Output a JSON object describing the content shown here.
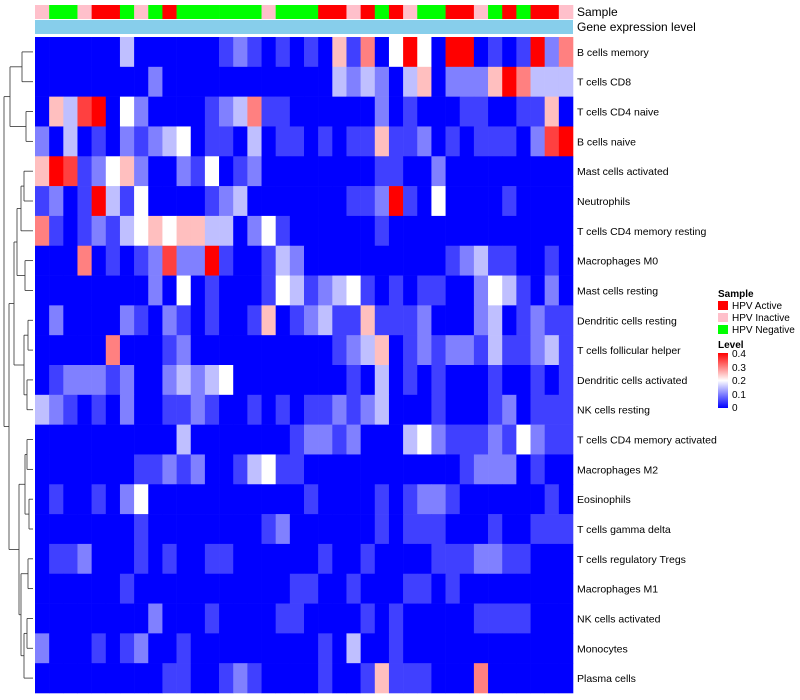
{
  "chart_data": {
    "type": "heatmap",
    "annotation_tracks": [
      "Sample",
      "Gene expression level"
    ],
    "rows": [
      "B cells memory",
      "T cells CD8",
      "T cells CD4 naive",
      "B cells naive",
      "Mast cells activated",
      "Neutrophils",
      "T cells CD4 memory resting",
      "Macrophages M0",
      "Mast cells resting",
      "Dendritic cells resting",
      "T cells follicular helper",
      "Dendritic cells activated",
      "NK cells resting",
      "T cells CD4 memory activated",
      "Macrophages M2",
      "Eosinophils",
      "T cells gamma delta",
      "T cells regulatory  Tregs",
      "Macrophages M1",
      "NK cells activated",
      "Monocytes",
      "Plasma cells"
    ],
    "sample_groups": [
      "I",
      "N",
      "N",
      "I",
      "A",
      "A",
      "N",
      "I",
      "N",
      "A",
      "N",
      "N",
      "N",
      "N",
      "N",
      "N",
      "I",
      "N",
      "N",
      "N",
      "A",
      "A",
      "I",
      "A",
      "N",
      "A",
      "I",
      "N",
      "N",
      "A",
      "A",
      "I",
      "N",
      "A",
      "N",
      "A",
      "A",
      "I"
    ],
    "sample_colors": {
      "A": "#ff0000",
      "I": "#ffc0cb",
      "N": "#00ff00"
    },
    "expression_track_color": "#87ceeb",
    "color_scale": {
      "min": 0,
      "mid": 0.2,
      "max": 0.4,
      "low_color": "#0000ff",
      "mid_color": "#ffffff",
      "high_color": "#ff0000"
    },
    "values": [
      [
        0,
        0,
        0,
        0,
        0,
        0,
        0.15,
        0,
        0,
        0,
        0,
        0,
        0,
        0.05,
        0.1,
        0.05,
        0,
        0.05,
        0,
        0.05,
        0,
        0.25,
        0.05,
        0.3,
        0,
        0.2,
        0.4,
        0.2,
        0,
        0.4,
        0.4,
        0,
        0.05,
        0,
        0.05,
        0.4,
        0.1,
        0.3
      ],
      [
        0,
        0,
        0,
        0,
        0,
        0,
        0,
        0,
        0.1,
        0,
        0,
        0,
        0,
        0,
        0,
        0,
        0,
        0,
        0,
        0,
        0,
        0.15,
        0.1,
        0.15,
        0.1,
        0,
        0.15,
        0.25,
        0,
        0.1,
        0.1,
        0.1,
        0.25,
        0.4,
        0.3,
        0.15,
        0.15,
        0.15
      ],
      [
        0,
        0.25,
        0.15,
        0.35,
        0.4,
        0,
        0.2,
        0.1,
        0,
        0,
        0,
        0,
        0.05,
        0.1,
        0.15,
        0.3,
        0.05,
        0.05,
        0,
        0,
        0,
        0,
        0,
        0,
        0.1,
        0,
        0.05,
        0,
        0,
        0,
        0.05,
        0.05,
        0,
        0,
        0.05,
        0.05,
        0.25,
        0
      ],
      [
        0.1,
        0,
        0.15,
        0,
        0.05,
        0,
        0.1,
        0.05,
        0.1,
        0.15,
        0.2,
        0,
        0.05,
        0.05,
        0,
        0.15,
        0,
        0.05,
        0.05,
        0,
        0.05,
        0,
        0.05,
        0.05,
        0.25,
        0.05,
        0.05,
        0.1,
        0,
        0.05,
        0,
        0.05,
        0.05,
        0.05,
        0,
        0.1,
        0.35,
        0.4
      ],
      [
        0.25,
        0.4,
        0.35,
        0.05,
        0.1,
        0.2,
        0.25,
        0.1,
        0,
        0,
        0.1,
        0.05,
        0.2,
        0,
        0.05,
        0.1,
        0,
        0,
        0,
        0,
        0,
        0,
        0,
        0,
        0.05,
        0.05,
        0,
        0,
        0.1,
        0,
        0,
        0,
        0,
        0,
        0,
        0,
        0,
        0
      ],
      [
        0.05,
        0.1,
        0,
        0.05,
        0.4,
        0.15,
        0.05,
        0.2,
        0,
        0,
        0,
        0,
        0.05,
        0.1,
        0.15,
        0,
        0,
        0,
        0,
        0,
        0,
        0,
        0.05,
        0.05,
        0.1,
        0.4,
        0.05,
        0,
        0.2,
        0,
        0,
        0,
        0,
        0.05,
        0,
        0,
        0,
        0
      ],
      [
        0.3,
        0.05,
        0,
        0.05,
        0.1,
        0.05,
        0.15,
        0.2,
        0.25,
        0.2,
        0.25,
        0.25,
        0.15,
        0.15,
        0,
        0.1,
        0.2,
        0.05,
        0,
        0,
        0,
        0,
        0,
        0,
        0.05,
        0,
        0,
        0,
        0,
        0,
        0,
        0,
        0,
        0,
        0,
        0,
        0,
        0
      ],
      [
        0,
        0,
        0,
        0.3,
        0,
        0.05,
        0,
        0.05,
        0.1,
        0.35,
        0.1,
        0.1,
        0.4,
        0.05,
        0,
        0,
        0.05,
        0.15,
        0.1,
        0,
        0,
        0,
        0,
        0,
        0,
        0,
        0,
        0,
        0,
        0.05,
        0.1,
        0.15,
        0.05,
        0.05,
        0,
        0,
        0.05,
        0
      ],
      [
        0,
        0,
        0,
        0,
        0,
        0,
        0,
        0,
        0.1,
        0,
        0.2,
        0,
        0.05,
        0,
        0,
        0,
        0.05,
        0.2,
        0.15,
        0.05,
        0.1,
        0.15,
        0.2,
        0.05,
        0,
        0.05,
        0,
        0.05,
        0.05,
        0,
        0,
        0.1,
        0.2,
        0.15,
        0.05,
        0,
        0.1,
        0
      ],
      [
        0,
        0.1,
        0,
        0,
        0,
        0,
        0.1,
        0.05,
        0,
        0.1,
        0.05,
        0,
        0.05,
        0,
        0,
        0.05,
        0.25,
        0,
        0.05,
        0.1,
        0.15,
        0.05,
        0.05,
        0.25,
        0.05,
        0.05,
        0.05,
        0.1,
        0,
        0,
        0,
        0.1,
        0.15,
        0,
        0.05,
        0.1,
        0.05,
        0.05
      ],
      [
        0,
        0,
        0,
        0,
        0,
        0.3,
        0,
        0,
        0,
        0.05,
        0.1,
        0,
        0,
        0,
        0,
        0,
        0,
        0,
        0,
        0,
        0,
        0.05,
        0.1,
        0.15,
        0.25,
        0,
        0.05,
        0.1,
        0.05,
        0.1,
        0.1,
        0.05,
        0.15,
        0.05,
        0.05,
        0.1,
        0.15,
        0.05
      ],
      [
        0,
        0.05,
        0.1,
        0.1,
        0.1,
        0.05,
        0.1,
        0,
        0,
        0.1,
        0.15,
        0.1,
        0.15,
        0.2,
        0,
        0,
        0,
        0,
        0,
        0,
        0,
        0,
        0.05,
        0,
        0.15,
        0,
        0.05,
        0,
        0.05,
        0,
        0,
        0,
        0.05,
        0,
        0,
        0.05,
        0,
        0.05
      ],
      [
        0.15,
        0.1,
        0.05,
        0,
        0.05,
        0,
        0.1,
        0,
        0,
        0.05,
        0.05,
        0.1,
        0.05,
        0,
        0,
        0.05,
        0,
        0.05,
        0,
        0.05,
        0.05,
        0.1,
        0.05,
        0.1,
        0.15,
        0,
        0,
        0,
        0.05,
        0,
        0,
        0,
        0.05,
        0.1,
        0,
        0.05,
        0.05,
        0.05
      ],
      [
        0,
        0,
        0,
        0,
        0,
        0,
        0,
        0,
        0,
        0,
        0.15,
        0,
        0,
        0,
        0,
        0,
        0,
        0,
        0.05,
        0.1,
        0.1,
        0.05,
        0.1,
        0,
        0,
        0,
        0.15,
        0.2,
        0.1,
        0.05,
        0.05,
        0.05,
        0.1,
        0.05,
        0.2,
        0.1,
        0.05,
        0.05
      ],
      [
        0,
        0,
        0,
        0,
        0,
        0,
        0,
        0.05,
        0.05,
        0.1,
        0.05,
        0.1,
        0,
        0,
        0.05,
        0.15,
        0.2,
        0.05,
        0.05,
        0,
        0,
        0,
        0,
        0,
        0,
        0,
        0,
        0,
        0,
        0,
        0.05,
        0.1,
        0.1,
        0.1,
        0,
        0.05,
        0,
        0
      ],
      [
        0,
        0.05,
        0,
        0,
        0.05,
        0,
        0.1,
        0.2,
        0,
        0,
        0,
        0,
        0,
        0,
        0,
        0,
        0,
        0,
        0,
        0.05,
        0,
        0,
        0,
        0,
        0.05,
        0,
        0.05,
        0.1,
        0.1,
        0.05,
        0,
        0,
        0,
        0,
        0,
        0,
        0.05,
        0
      ],
      [
        0,
        0,
        0,
        0,
        0,
        0,
        0,
        0.05,
        0,
        0,
        0,
        0,
        0,
        0,
        0,
        0,
        0.05,
        0.1,
        0,
        0,
        0,
        0,
        0,
        0,
        0.05,
        0,
        0.05,
        0.05,
        0.05,
        0,
        0,
        0,
        0.05,
        0,
        0,
        0.05,
        0.05,
        0.05
      ],
      [
        0,
        0.05,
        0.05,
        0.1,
        0,
        0,
        0,
        0.05,
        0,
        0.05,
        0,
        0,
        0.05,
        0.05,
        0,
        0,
        0,
        0,
        0,
        0,
        0.05,
        0,
        0,
        0.05,
        0,
        0,
        0,
        0,
        0.05,
        0.05,
        0.05,
        0.1,
        0.1,
        0.05,
        0.05,
        0,
        0,
        0
      ],
      [
        0,
        0,
        0,
        0,
        0,
        0,
        0.05,
        0,
        0,
        0,
        0,
        0,
        0,
        0,
        0,
        0,
        0,
        0,
        0.05,
        0.05,
        0,
        0,
        0.05,
        0,
        0,
        0,
        0.05,
        0.05,
        0,
        0.05,
        0,
        0,
        0,
        0,
        0,
        0,
        0,
        0
      ],
      [
        0,
        0,
        0,
        0,
        0,
        0,
        0,
        0,
        0.1,
        0,
        0,
        0,
        0.05,
        0,
        0,
        0,
        0,
        0.05,
        0.05,
        0,
        0,
        0,
        0,
        0.05,
        0,
        0.05,
        0,
        0,
        0,
        0,
        0,
        0.05,
        0.05,
        0.05,
        0.05,
        0,
        0,
        0
      ],
      [
        0.1,
        0,
        0,
        0,
        0.05,
        0,
        0.05,
        0.1,
        0,
        0,
        0.05,
        0,
        0,
        0,
        0,
        0,
        0,
        0,
        0,
        0,
        0.05,
        0,
        0.15,
        0,
        0,
        0.05,
        0,
        0,
        0,
        0,
        0,
        0,
        0,
        0,
        0,
        0,
        0,
        0
      ],
      [
        0,
        0,
        0,
        0,
        0,
        0,
        0,
        0,
        0,
        0.05,
        0.05,
        0,
        0,
        0.05,
        0.1,
        0.05,
        0,
        0,
        0,
        0,
        0.05,
        0,
        0,
        0.05,
        0.25,
        0.05,
        0.05,
        0.05,
        0,
        0,
        0,
        0.3,
        0,
        0,
        0,
        0,
        0,
        0
      ]
    ],
    "legend": {
      "sample_title": "Sample",
      "sample_entries": [
        {
          "label": "HPV Active",
          "color": "#ff0000"
        },
        {
          "label": "HPV Inactive",
          "color": "#ffc0cb"
        },
        {
          "label": "HPV Negative",
          "color": "#00ff00"
        }
      ],
      "level_title": "Level",
      "level_ticks": [
        "0.4",
        "0.3",
        "0.2",
        "0.1",
        "0"
      ],
      "placement": "right"
    },
    "dendrogram": "left (row clustering)"
  }
}
